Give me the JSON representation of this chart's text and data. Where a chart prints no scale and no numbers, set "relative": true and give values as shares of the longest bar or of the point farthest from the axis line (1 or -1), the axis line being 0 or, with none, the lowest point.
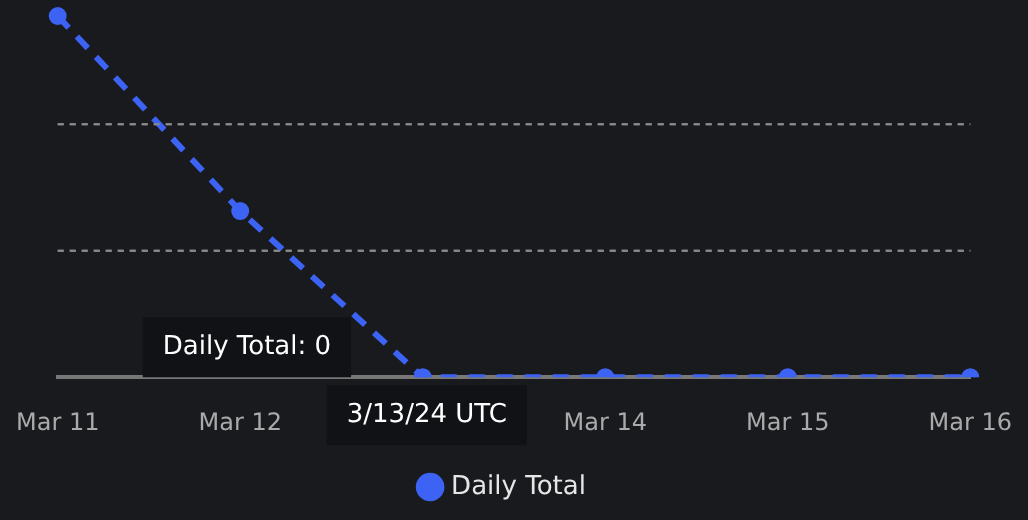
{
  "chart_data": {
    "type": "line",
    "relative": true,
    "categories": [
      "Mar 11",
      "Mar 12",
      null,
      "Mar 14",
      "Mar 15",
      "Mar 16"
    ],
    "series": [
      {
        "name": "Daily Total",
        "color": "#3d63f5",
        "values": [
          1,
          0.46,
          0,
          0,
          0,
          0
        ]
      }
    ],
    "line_style": "dashed",
    "marker": "circle",
    "legend": "bottom",
    "ref_lines": [
      {
        "axis": "y",
        "value": 0.35,
        "color": "#8a8a8a",
        "line_style": "dashed"
      },
      {
        "axis": "y",
        "value": 0.7,
        "color": "#8a8a8a",
        "line_style": "dashed"
      }
    ],
    "annotations": [
      "Daily Total: 0",
      "3/13/24 UTC"
    ]
  }
}
